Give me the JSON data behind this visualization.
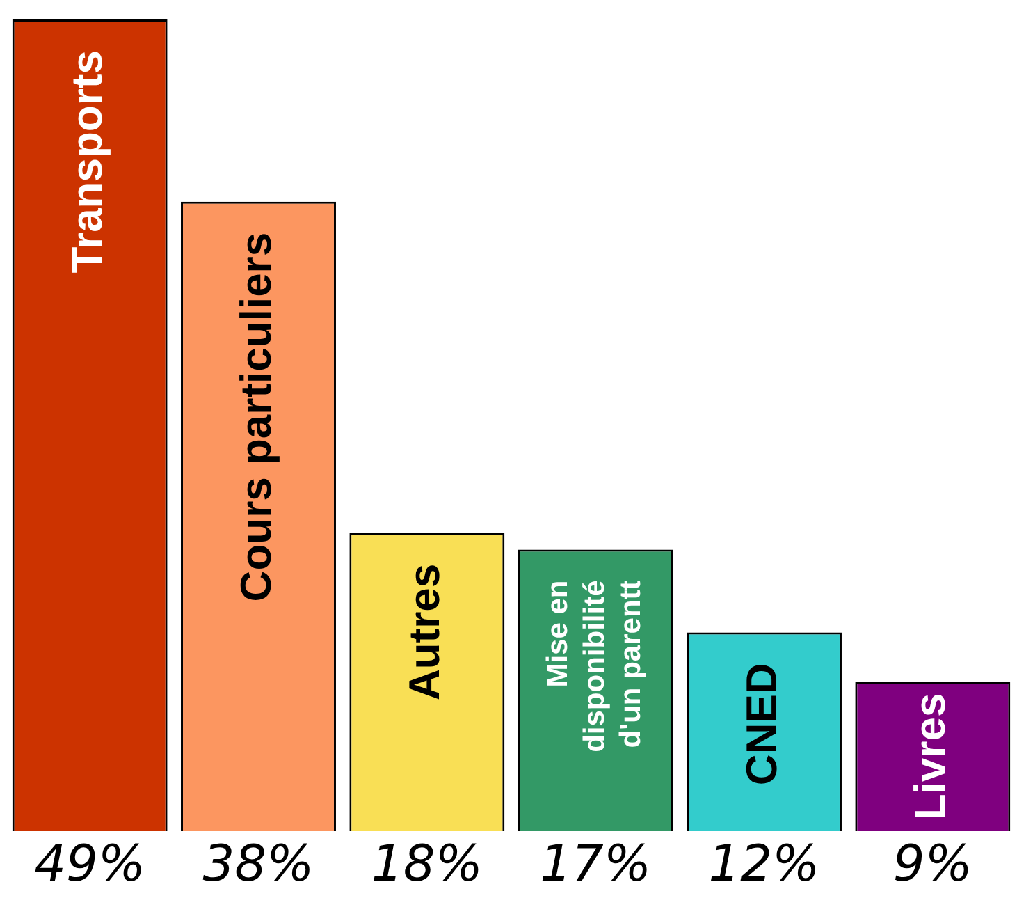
{
  "chart_data": {
    "type": "bar",
    "categories": [
      "Transports",
      "Cours particuliers",
      "Autres",
      "Mise en\ndisponibilité\nd'un parentt",
      "CNED",
      "Livres"
    ],
    "values": [
      49,
      38,
      18,
      17,
      12,
      9
    ],
    "colors": [
      "#cc3300",
      "#fc9660",
      "#f9df55",
      "#339966",
      "#33cccc",
      "#7f007f"
    ],
    "value_labels": [
      "49%",
      "38%",
      "18%",
      "17%",
      "12%",
      "9%"
    ]
  }
}
